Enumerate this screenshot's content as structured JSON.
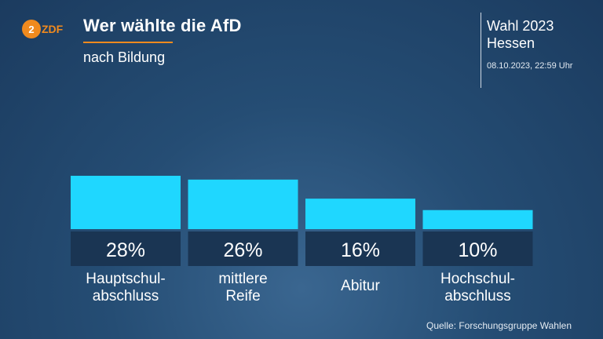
{
  "header": {
    "logo_text": "ZDF",
    "title": "Wer wählte die AfD",
    "subtitle": "nach Bildung",
    "event_line1": "Wahl 2023",
    "event_line2": "Hessen",
    "timestamp": "08.10.2023, 22:59 Uhr"
  },
  "footer": {
    "source": "Quelle: Forschungsgruppe Wahlen"
  },
  "colors": {
    "bar": "#1fd7ff",
    "value_box": "#1a3553",
    "accent": "#f08a1e"
  },
  "chart_data": {
    "type": "bar",
    "title": "Wer wählte die AfD",
    "subtitle": "nach Bildung",
    "categories": [
      [
        "Hauptschul-",
        "abschluss"
      ],
      [
        "mittlere",
        "Reife"
      ],
      [
        "Abitur"
      ],
      [
        "Hochschul-",
        "abschluss"
      ]
    ],
    "values": [
      28,
      26,
      16,
      10
    ],
    "value_labels": [
      "28%",
      "26%",
      "16%",
      "10%"
    ],
    "unit": "%",
    "ylim": [
      0,
      28
    ],
    "grid": false
  }
}
